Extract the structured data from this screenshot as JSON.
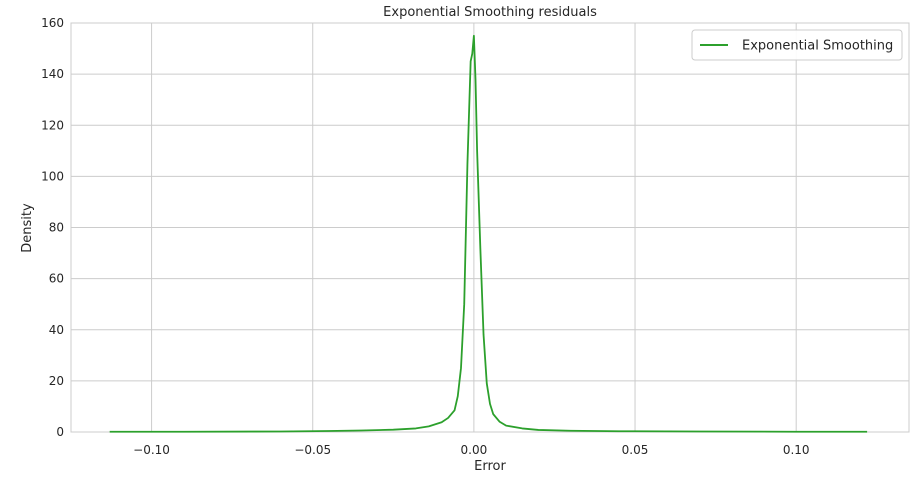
{
  "chart_data": {
    "type": "line",
    "title": "Exponential Smoothing residuals",
    "xlabel": "Error",
    "ylabel": "Density",
    "xlim": [
      -0.125,
      0.135
    ],
    "ylim": [
      0,
      160
    ],
    "grid": true,
    "legend_position": "top-right",
    "x_ticks": [
      -0.1,
      -0.05,
      0.0,
      0.05,
      0.1
    ],
    "x_tick_labels": [
      "−0.10",
      "−0.05",
      "0.00",
      "0.05",
      "0.10"
    ],
    "y_ticks": [
      0,
      20,
      40,
      60,
      80,
      100,
      120,
      140,
      160
    ],
    "y_tick_labels": [
      "0",
      "20",
      "40",
      "60",
      "80",
      "100",
      "120",
      "140",
      "160"
    ],
    "series": [
      {
        "name": "Exponential Smoothing",
        "color": "#2ca02c",
        "x": [
          -0.113,
          -0.09,
          -0.06,
          -0.045,
          -0.035,
          -0.025,
          -0.018,
          -0.014,
          -0.01,
          -0.008,
          -0.006,
          -0.005,
          -0.004,
          -0.003,
          -0.002,
          -0.001,
          -0.0005,
          0.0,
          0.0005,
          0.001,
          0.002,
          0.003,
          0.004,
          0.005,
          0.006,
          0.008,
          0.01,
          0.015,
          0.02,
          0.03,
          0.045,
          0.07,
          0.1,
          0.122
        ],
        "y": [
          0.1,
          0.1,
          0.2,
          0.4,
          0.6,
          0.9,
          1.4,
          2.2,
          3.8,
          5.5,
          8.5,
          14,
          25,
          50,
          105,
          145,
          148,
          155,
          138,
          110,
          72,
          38,
          19,
          11,
          7,
          4,
          2.5,
          1.4,
          0.8,
          0.5,
          0.3,
          0.2,
          0.1,
          0.1
        ]
      }
    ]
  }
}
